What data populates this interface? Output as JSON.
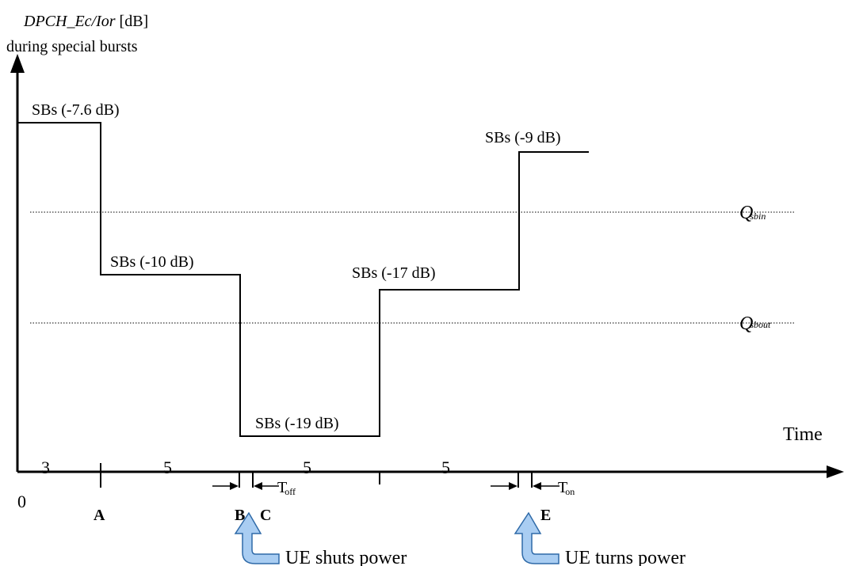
{
  "y_axis": {
    "title_italic": "DPCH_Ec/Ior",
    "title_unit": " [dB]",
    "title_line2": "during special bursts"
  },
  "x_axis": {
    "label": "Time",
    "origin_label": "0"
  },
  "segment_labels": [
    {
      "id": "sb-1",
      "text": "SBs (-7.6 dB)"
    },
    {
      "id": "sb-2",
      "text": "SBs (-10 dB)"
    },
    {
      "id": "sb-3",
      "text": "SBs (-19 dB)"
    },
    {
      "id": "sb-4",
      "text": "SBs (-17 dB)"
    },
    {
      "id": "sb-5",
      "text": "SBs (-9 dB)"
    }
  ],
  "thresholds": [
    {
      "id": "qsbin",
      "main": "Q",
      "sub": "sbin"
    },
    {
      "id": "qsbout",
      "main": "Q",
      "sub": "sbout"
    }
  ],
  "durations": [
    "3",
    "5",
    "5",
    "5"
  ],
  "points": [
    "A",
    "B",
    "C",
    "E"
  ],
  "timers": [
    {
      "id": "t-off",
      "main": "T",
      "sub": "off"
    },
    {
      "id": "t-on",
      "main": "T",
      "sub": "on"
    }
  ],
  "events": [
    {
      "id": "ue-shuts",
      "text": "UE shuts power"
    },
    {
      "id": "ue-turns",
      "text": "UE turns power"
    }
  ],
  "colors": {
    "line": "#000000",
    "callout_fill": "#a9cdf2",
    "callout_stroke": "#2f6aa8"
  }
}
